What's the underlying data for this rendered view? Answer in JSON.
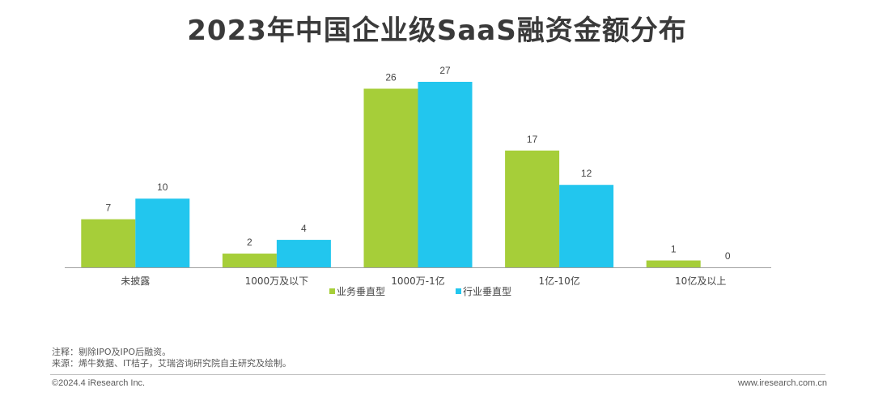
{
  "chart_data": {
    "type": "bar",
    "title": "2023年中国企业级SaaS融资金额分布",
    "categories": [
      "未披露",
      "1000万及以下",
      "1000万-1亿",
      "1亿-10亿",
      "10亿及以上"
    ],
    "series": [
      {
        "name": "业务垂直型",
        "values": [
          7,
          2,
          26,
          17,
          1
        ],
        "color": "#a6ce39"
      },
      {
        "name": "行业垂直型",
        "values": [
          10,
          4,
          27,
          12,
          0
        ],
        "color": "#22c6ee"
      }
    ],
    "ylim": [
      0,
      27
    ],
    "legend_position": "bottom-center",
    "grid": false
  },
  "notes": {
    "line1": "注释：剔除IPO及IPO后融资。",
    "line2": "来源：烯牛数据、IT桔子，艾瑞咨询研究院自主研究及绘制。"
  },
  "footer": {
    "copyright": "©2024.4 iResearch Inc.",
    "url": "www.iresearch.com.cn"
  }
}
